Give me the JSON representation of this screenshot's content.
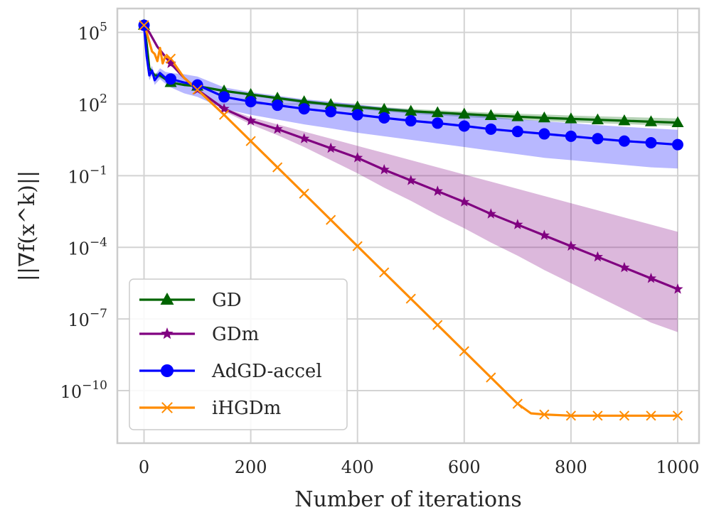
{
  "chart_data": {
    "type": "line",
    "xlabel": "Number of iterations",
    "ylabel": "||∇f(x^k)||",
    "yscale": "log",
    "xlim": [
      -50,
      1040
    ],
    "ylim_log10": [
      -12.2,
      6.0
    ],
    "grid": true,
    "legend_position": "lower-left",
    "x_ticks": [
      0,
      200,
      400,
      600,
      800,
      1000
    ],
    "x_tick_labels": [
      "0",
      "200",
      "400",
      "600",
      "800",
      "1000"
    ],
    "y_ticks_log10": [
      5,
      2,
      -1,
      -4,
      -7,
      -10
    ],
    "y_tick_labels": [
      {
        "base": "10",
        "exp": "5"
      },
      {
        "base": "10",
        "exp": "2"
      },
      {
        "base": "10",
        "exp": "−1"
      },
      {
        "base": "10",
        "exp": "−4"
      },
      {
        "base": "10",
        "exp": "−7"
      },
      {
        "base": "10",
        "exp": "−10"
      }
    ],
    "series": [
      {
        "name": "GD",
        "color": "#006400",
        "marker": "triangle",
        "x": [
          0,
          5,
          10,
          20,
          30,
          50,
          75,
          100,
          150,
          200,
          250,
          300,
          350,
          400,
          450,
          500,
          550,
          600,
          650,
          700,
          750,
          800,
          850,
          900,
          950,
          1000
        ],
        "log10_y": [
          5.3,
          4.5,
          3.5,
          3.2,
          3.2,
          2.9,
          2.8,
          2.75,
          2.55,
          2.4,
          2.25,
          2.1,
          1.98,
          1.88,
          1.78,
          1.7,
          1.64,
          1.58,
          1.52,
          1.47,
          1.42,
          1.38,
          1.34,
          1.3,
          1.26,
          1.22
        ],
        "band_lower_log10": [
          5.3,
          4.4,
          3.4,
          3.1,
          3.1,
          2.85,
          2.75,
          2.7,
          2.5,
          2.35,
          2.18,
          2.03,
          1.9,
          1.79,
          1.69,
          1.6,
          1.53,
          1.46,
          1.4,
          1.34,
          1.29,
          1.24,
          1.2,
          1.16,
          1.12,
          1.08
        ],
        "band_upper_log10": [
          5.3,
          4.6,
          3.6,
          3.3,
          3.3,
          2.95,
          2.85,
          2.8,
          2.6,
          2.45,
          2.31,
          2.17,
          2.06,
          1.96,
          1.87,
          1.8,
          1.74,
          1.69,
          1.64,
          1.6,
          1.56,
          1.52,
          1.49,
          1.46,
          1.43,
          1.4
        ]
      },
      {
        "name": "GDm",
        "color": "#800080",
        "marker": "star",
        "x": [
          0,
          10,
          25,
          50,
          75,
          100,
          150,
          200,
          250,
          300,
          350,
          400,
          450,
          500,
          550,
          600,
          650,
          700,
          750,
          800,
          850,
          900,
          950,
          1000
        ],
        "log10_y": [
          5.3,
          5.0,
          4.4,
          3.7,
          3.1,
          2.6,
          1.8,
          1.3,
          0.95,
          0.55,
          0.15,
          -0.25,
          -0.75,
          -1.2,
          -1.65,
          -2.1,
          -2.6,
          -3.05,
          -3.5,
          -3.95,
          -4.4,
          -4.85,
          -5.3,
          -5.75
        ],
        "band_lower_log10": [
          5.3,
          5.0,
          4.4,
          3.7,
          3.1,
          2.6,
          1.7,
          1.15,
          0.7,
          0.2,
          -0.35,
          -0.9,
          -1.5,
          -2.05,
          -2.65,
          -3.2,
          -3.8,
          -4.35,
          -4.95,
          -5.5,
          -6.05,
          -6.6,
          -7.15,
          -7.55
        ],
        "band_upper_log10": [
          5.3,
          5.0,
          4.4,
          3.7,
          3.1,
          2.6,
          1.85,
          1.45,
          1.15,
          0.85,
          0.55,
          0.25,
          -0.05,
          -0.35,
          -0.65,
          -0.95,
          -1.25,
          -1.55,
          -1.85,
          -2.15,
          -2.45,
          -2.75,
          -3.05,
          -3.35
        ]
      },
      {
        "name": "AdGD-accel",
        "color": "#0000ff",
        "marker": "circle",
        "x": [
          0,
          5,
          10,
          15,
          20,
          30,
          40,
          50,
          75,
          100,
          150,
          200,
          250,
          300,
          350,
          400,
          450,
          500,
          550,
          600,
          650,
          700,
          750,
          800,
          850,
          900,
          950,
          1000
        ],
        "log10_y": [
          5.3,
          4.0,
          3.2,
          3.4,
          3.0,
          3.3,
          3.1,
          3.05,
          2.9,
          2.8,
          2.3,
          2.1,
          1.95,
          1.8,
          1.68,
          1.55,
          1.42,
          1.3,
          1.2,
          1.08,
          0.95,
          0.85,
          0.75,
          0.65,
          0.55,
          0.45,
          0.38,
          0.3
        ],
        "band_lower_log10": [
          5.3,
          3.8,
          3.0,
          3.2,
          2.8,
          3.05,
          2.85,
          2.7,
          2.45,
          2.3,
          1.8,
          1.55,
          1.35,
          1.15,
          0.98,
          0.8,
          0.65,
          0.5,
          0.35,
          0.2,
          0.05,
          -0.1,
          -0.25,
          -0.35,
          -0.45,
          -0.55,
          -0.65,
          -0.7
        ],
        "band_upper_log10": [
          5.3,
          4.2,
          3.4,
          3.6,
          3.2,
          3.5,
          3.35,
          3.3,
          3.25,
          3.15,
          2.7,
          2.5,
          2.35,
          2.2,
          2.1,
          1.98,
          1.86,
          1.76,
          1.66,
          1.56,
          1.46,
          1.36,
          1.28,
          1.2,
          1.12,
          1.05,
          0.98,
          0.92
        ]
      },
      {
        "name": "iHGDm",
        "color": "#ff8c00",
        "marker": "x",
        "x": [
          0,
          5,
          10,
          15,
          20,
          25,
          30,
          35,
          40,
          50,
          75,
          100,
          150,
          200,
          250,
          300,
          350,
          400,
          450,
          500,
          550,
          600,
          650,
          700,
          725,
          750,
          800,
          850,
          900,
          950,
          1000
        ],
        "log10_y": [
          5.3,
          5.0,
          4.6,
          4.2,
          4.1,
          3.8,
          4.35,
          3.7,
          4.0,
          3.9,
          3.1,
          2.6,
          1.55,
          0.45,
          -0.65,
          -1.75,
          -2.85,
          -3.95,
          -5.05,
          -6.15,
          -7.25,
          -8.35,
          -9.45,
          -10.55,
          -10.95,
          -11.0,
          -11.05,
          -11.05,
          -11.05,
          -11.05,
          -11.05
        ]
      }
    ]
  }
}
